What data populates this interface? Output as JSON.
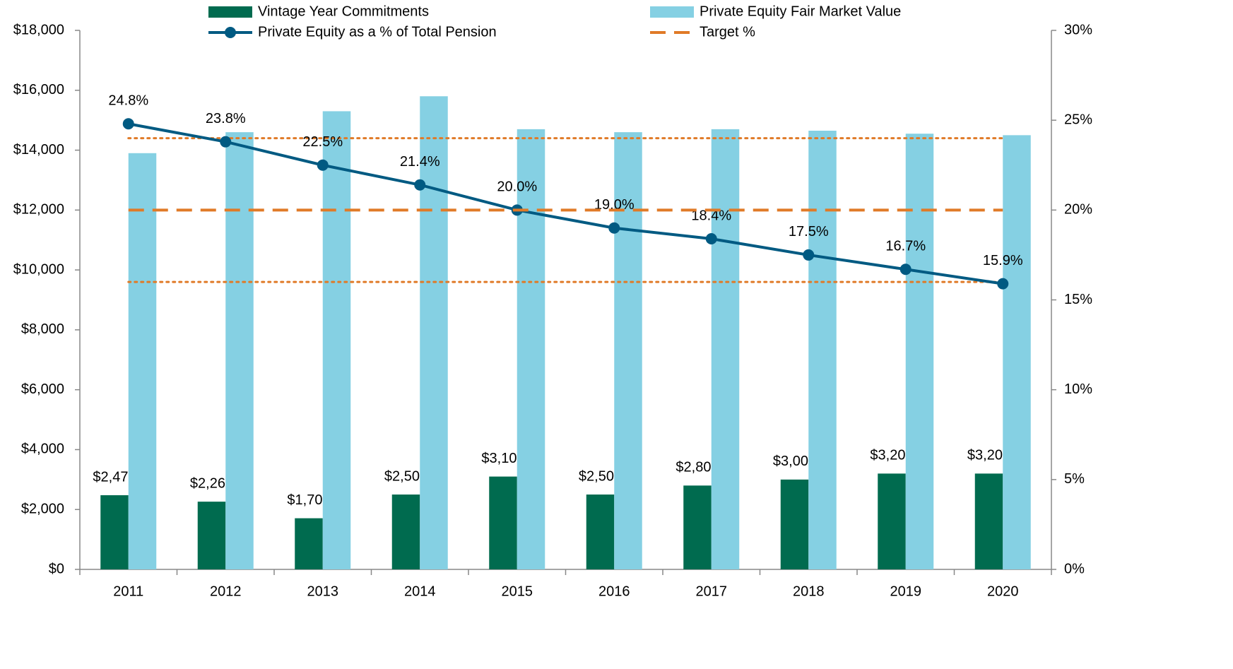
{
  "chart_data": {
    "type": "combo",
    "categories": [
      "2011",
      "2012",
      "2013",
      "2014",
      "2015",
      "2016",
      "2017",
      "2018",
      "2019",
      "2020"
    ],
    "series": [
      {
        "name": "Vintage Year Commitments",
        "type": "bar",
        "color": "#006b4f",
        "values": [
          2477,
          2262,
          1708,
          2500,
          3100,
          2500,
          2800,
          3000,
          3200,
          3200
        ],
        "value_labels": [
          "$2,477",
          "$2,262",
          "$1,708",
          "$2,500",
          "$3,100",
          "$2,500",
          "$2,800",
          "$3,000",
          "$3,200",
          "$3,200"
        ]
      },
      {
        "name": "Private Equity Fair Market Value",
        "type": "bar",
        "color": "#85d0e3",
        "values": [
          13900,
          14600,
          15300,
          15800,
          14700,
          14600,
          14700,
          14650,
          14550,
          14500
        ]
      },
      {
        "name": "Private Equity as a % of Total Pension",
        "type": "line",
        "axis": "y2",
        "color": "#005a82",
        "marker": "circle",
        "values": [
          24.8,
          23.8,
          22.5,
          21.4,
          20.0,
          19.0,
          18.4,
          17.5,
          16.7,
          15.9
        ],
        "value_labels": [
          "24.8%",
          "23.8%",
          "22.5%",
          "21.4%",
          "20.0%",
          "19.0%",
          "18.4%",
          "17.5%",
          "16.7%",
          "15.9%"
        ]
      },
      {
        "name": "Target %",
        "type": "line",
        "axis": "y2",
        "color": "#e07a27",
        "dash": "dashed",
        "values": [
          20,
          20,
          20,
          20,
          20,
          20,
          20,
          20,
          20,
          20
        ]
      }
    ],
    "reference_lines": [
      {
        "value": 24,
        "axis": "y2",
        "color": "#e07a27",
        "dash": "dotted"
      },
      {
        "value": 16,
        "axis": "y2",
        "color": "#e07a27",
        "dash": "dotted"
      }
    ],
    "ylim": [
      0,
      18000
    ],
    "yticks": [
      {
        "value": 0,
        "label": "$0"
      },
      {
        "value": 2000,
        "label": "$2,000"
      },
      {
        "value": 4000,
        "label": "$4,000"
      },
      {
        "value": 6000,
        "label": "$6,000"
      },
      {
        "value": 8000,
        "label": "$8,000"
      },
      {
        "value": 10000,
        "label": "$10,000"
      },
      {
        "value": 12000,
        "label": "$12,000"
      },
      {
        "value": 14000,
        "label": "$14,000"
      },
      {
        "value": 16000,
        "label": "$16,000"
      },
      {
        "value": 18000,
        "label": "$18,000"
      }
    ],
    "y2lim": [
      0,
      30
    ],
    "y2ticks": [
      {
        "value": 0,
        "label": "0%"
      },
      {
        "value": 5,
        "label": "5%"
      },
      {
        "value": 10,
        "label": "10%"
      },
      {
        "value": 15,
        "label": "15%"
      },
      {
        "value": 20,
        "label": "20%"
      },
      {
        "value": 25,
        "label": "25%"
      },
      {
        "value": 30,
        "label": "30%"
      }
    ],
    "legend": "top"
  }
}
